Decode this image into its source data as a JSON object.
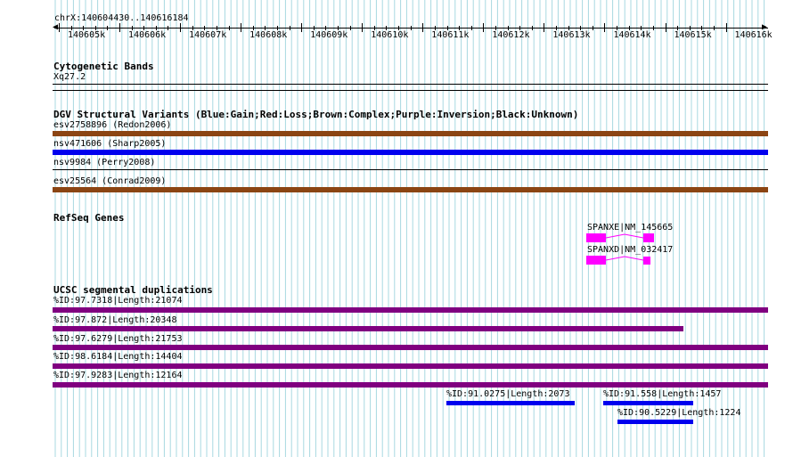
{
  "ruler": {
    "range_label": "chrX:140604430..140616184",
    "ticks": [
      "140605k",
      "140606k",
      "140607k",
      "140608k",
      "140609k",
      "140610k",
      "140611k",
      "140612k",
      "140613k",
      "140614k",
      "140615k",
      "140616k"
    ]
  },
  "cytoband": {
    "title": "Cytogenetic Bands",
    "band": "Xq27.2"
  },
  "dgv": {
    "title": "DGV Structural Variants (Blue:Gain;Red:Loss;Brown:Complex;Purple:Inversion;Black:Unknown)",
    "items": [
      {
        "label": "esv2758896 (Redon2006)",
        "color": "#8b4513"
      },
      {
        "label": "nsv471606 (Sharp2005)",
        "color": "#0000ee"
      },
      {
        "label": "nsv9984 (Perry2008)",
        "color": "#000000"
      },
      {
        "label": "esv25564 (Conrad2009)",
        "color": "#8b4513"
      }
    ]
  },
  "refseq": {
    "title": "RefSeq Genes",
    "genes": [
      {
        "label": "SPANXE|NM_145665",
        "color": "#ff00ff"
      },
      {
        "label": "SPANXD|NM_032417",
        "color": "#ff00ff"
      }
    ]
  },
  "segdup": {
    "title": "UCSC segmental duplications",
    "items": [
      {
        "label": "%ID:97.7318|Length:21074",
        "color": "#800080"
      },
      {
        "label": "%ID:97.872|Length:20348",
        "color": "#800080"
      },
      {
        "label": "%ID:97.6279|Length:21753",
        "color": "#800080"
      },
      {
        "label": "%ID:98.6184|Length:14404",
        "color": "#800080"
      },
      {
        "label": "%ID:97.9283|Length:12164",
        "color": "#800080"
      },
      {
        "label": "%ID:91.0275|Length:2073",
        "color": "#0000ee"
      },
      {
        "label": "%ID:91.558|Length:1457",
        "color": "#0000ee"
      },
      {
        "label": "%ID:90.5229|Length:1224",
        "color": "#0000ee"
      }
    ]
  },
  "colors": {
    "grid": "#a8d8e0",
    "brown": "#8b4513",
    "blue": "#0000ee",
    "magenta": "#ff00ff",
    "purple": "#800080"
  }
}
